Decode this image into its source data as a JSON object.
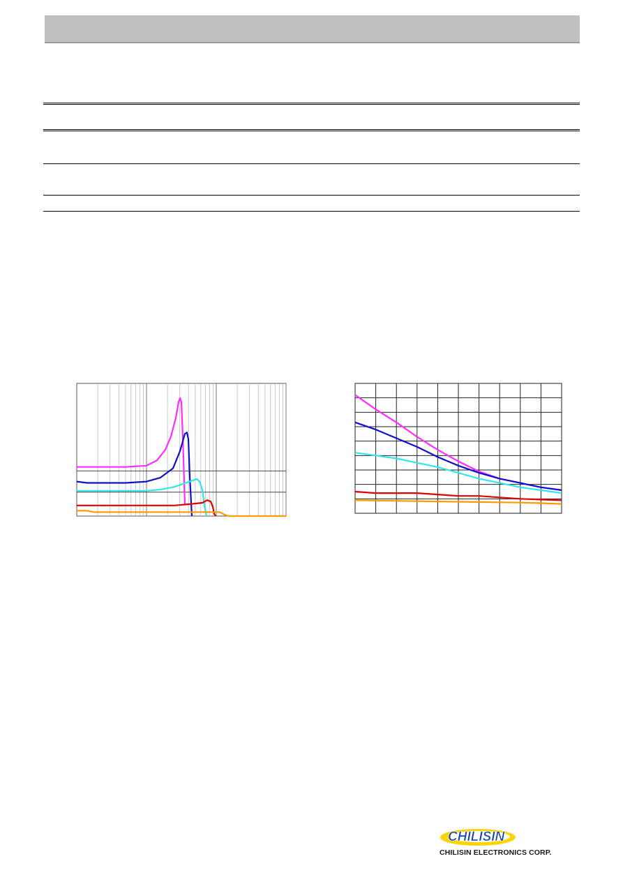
{
  "company": {
    "logo_text": "CHILISIN",
    "name": "CHILISIN ELECTRONICS CORP."
  },
  "colors": {
    "header_bar": "#c0c0c0",
    "series": {
      "magenta": "#ff2bff",
      "blue": "#1010cc",
      "cyan": "#33e5e5",
      "red": "#e00000",
      "orange": "#ff9900"
    },
    "logo_yellow": "#ffd400",
    "logo_blue": "#1040b0"
  },
  "chart_data": [
    {
      "type": "line",
      "x_scale": "log",
      "xlim_decades": 3,
      "ylim": [
        0,
        100
      ],
      "grid": "log-x with two horizontal lines",
      "series": [
        {
          "color": "magenta",
          "x": [
            0,
            0.7,
            1.0,
            1.15,
            1.27,
            1.35,
            1.42,
            1.46,
            1.48,
            1.5,
            1.52,
            1.55
          ],
          "y": [
            37,
            37,
            38,
            42,
            50,
            60,
            74,
            86,
            89,
            86,
            60,
            9
          ]
        },
        {
          "color": "blue",
          "x": [
            0,
            0.15,
            0.7,
            1.0,
            1.2,
            1.38,
            1.48,
            1.55,
            1.58,
            1.6,
            1.62,
            1.65
          ],
          "y": [
            26,
            25,
            25,
            26,
            29,
            36,
            49,
            62,
            63,
            58,
            30,
            -2
          ]
        },
        {
          "color": "cyan",
          "x": [
            0,
            0.7,
            1.0,
            1.2,
            1.4,
            1.62,
            1.72,
            1.76,
            1.8,
            1.83,
            1.86
          ],
          "y": [
            19,
            19,
            19,
            20,
            22,
            26,
            28,
            26,
            20,
            8,
            -2
          ]
        },
        {
          "color": "red",
          "x": [
            0,
            0.9,
            1.4,
            1.62,
            1.8,
            1.87,
            1.92,
            1.95,
            1.97,
            1.99
          ],
          "y": [
            8,
            8,
            8,
            9,
            10,
            12,
            11,
            7,
            2,
            -1
          ]
        },
        {
          "color": "orange",
          "x": [
            0,
            0.15,
            0.25,
            1.0,
            1.9,
            2.05,
            2.12,
            2.18,
            2.4,
            2.7,
            3.0
          ],
          "y": [
            4,
            4,
            3,
            3,
            3,
            3,
            1,
            0,
            -1,
            -1,
            -1
          ]
        }
      ]
    },
    {
      "type": "line",
      "xlim": [
        0,
        10
      ],
      "ylim": [
        0,
        9
      ],
      "grid": true,
      "series": [
        {
          "color": "magenta",
          "x": [
            0,
            1,
            2,
            3,
            4,
            5,
            6,
            7,
            8,
            9,
            10
          ],
          "y": [
            8.2,
            7.2,
            6.3,
            5.3,
            4.4,
            3.6,
            2.9,
            2.4,
            2.1,
            1.8,
            1.6
          ]
        },
        {
          "color": "blue",
          "x": [
            0,
            1,
            2,
            3,
            4,
            5,
            6,
            7,
            8,
            9,
            10
          ],
          "y": [
            6.3,
            5.8,
            5.2,
            4.6,
            3.9,
            3.3,
            2.8,
            2.4,
            2.1,
            1.8,
            1.6
          ]
        },
        {
          "color": "cyan",
          "x": [
            0,
            1,
            2,
            3,
            4,
            5,
            6,
            7,
            8,
            9,
            10
          ],
          "y": [
            4.2,
            4.0,
            3.8,
            3.5,
            3.2,
            2.8,
            2.4,
            2.1,
            1.8,
            1.6,
            1.4
          ]
        },
        {
          "color": "red",
          "x": [
            0,
            1,
            2,
            3,
            4,
            5,
            6,
            7,
            8,
            9,
            10
          ],
          "y": [
            1.5,
            1.4,
            1.4,
            1.4,
            1.3,
            1.2,
            1.2,
            1.1,
            1.0,
            0.95,
            0.9
          ]
        },
        {
          "color": "orange",
          "x": [
            0,
            1,
            2,
            3,
            4,
            5,
            6,
            7,
            8,
            9,
            10
          ],
          "y": [
            0.9,
            0.88,
            0.86,
            0.84,
            0.82,
            0.8,
            0.78,
            0.76,
            0.74,
            0.7,
            0.65
          ]
        }
      ]
    }
  ]
}
